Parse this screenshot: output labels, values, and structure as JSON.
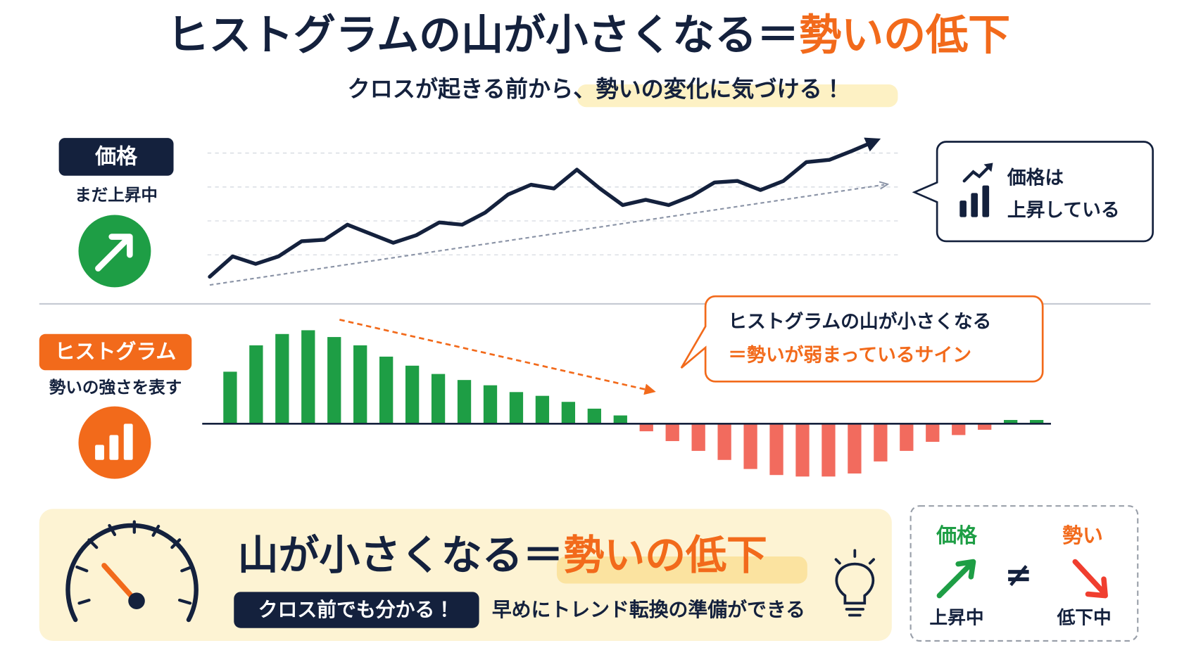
{
  "header": {
    "title": "ヒストグラムの山が小さくなる＝",
    "title_highlight": "勢いの低下",
    "subtitle": "クロスが起きる前から、",
    "subtitle_highlight": "勢いの変化に気づける！"
  },
  "price_panel": {
    "badge": "価格",
    "caption": "まだ上昇中",
    "callout": [
      "価格は",
      "上昇している"
    ]
  },
  "histogram_panel": {
    "badge": "ヒストグラム",
    "caption": "勢いの強さを表す",
    "callout": [
      "ヒストグラムの山が小さくなる",
      "＝勢いが弱まっているサイン"
    ]
  },
  "summary": {
    "headline": "山が小さくなる＝",
    "headline_highlight": "勢いの低下",
    "pill": "クロス前でも分かる！",
    "note": "早めにトレンド転換の準備ができる"
  },
  "comparison": {
    "left_label": "価格",
    "left_state": "上昇中",
    "symbol": "≠",
    "right_label": "勢い",
    "right_state": "低下中"
  },
  "chart_data": [
    {
      "type": "line",
      "color": "#14213d",
      "ylim": [
        0,
        200
      ],
      "values": [
        13,
        40,
        30,
        40,
        60,
        62,
        82,
        70,
        58,
        68,
        85,
        82,
        98,
        122,
        135,
        130,
        155,
        130,
        108,
        115,
        108,
        120,
        138,
        140,
        128,
        140,
        165,
        168,
        180,
        193
      ]
    },
    {
      "type": "bar",
      "color": "#1e9e45",
      "negative_color": "#f26b5e",
      "ylim": [
        -80,
        130
      ],
      "values": [
        69,
        104,
        119,
        124,
        115,
        104,
        89,
        77,
        66,
        58,
        51,
        42,
        37,
        29,
        20,
        11,
        -10,
        -23,
        -36,
        -48,
        -60,
        -68,
        -70,
        -70,
        -66,
        -50,
        -36,
        -24,
        -15,
        -8,
        5,
        5
      ]
    }
  ]
}
